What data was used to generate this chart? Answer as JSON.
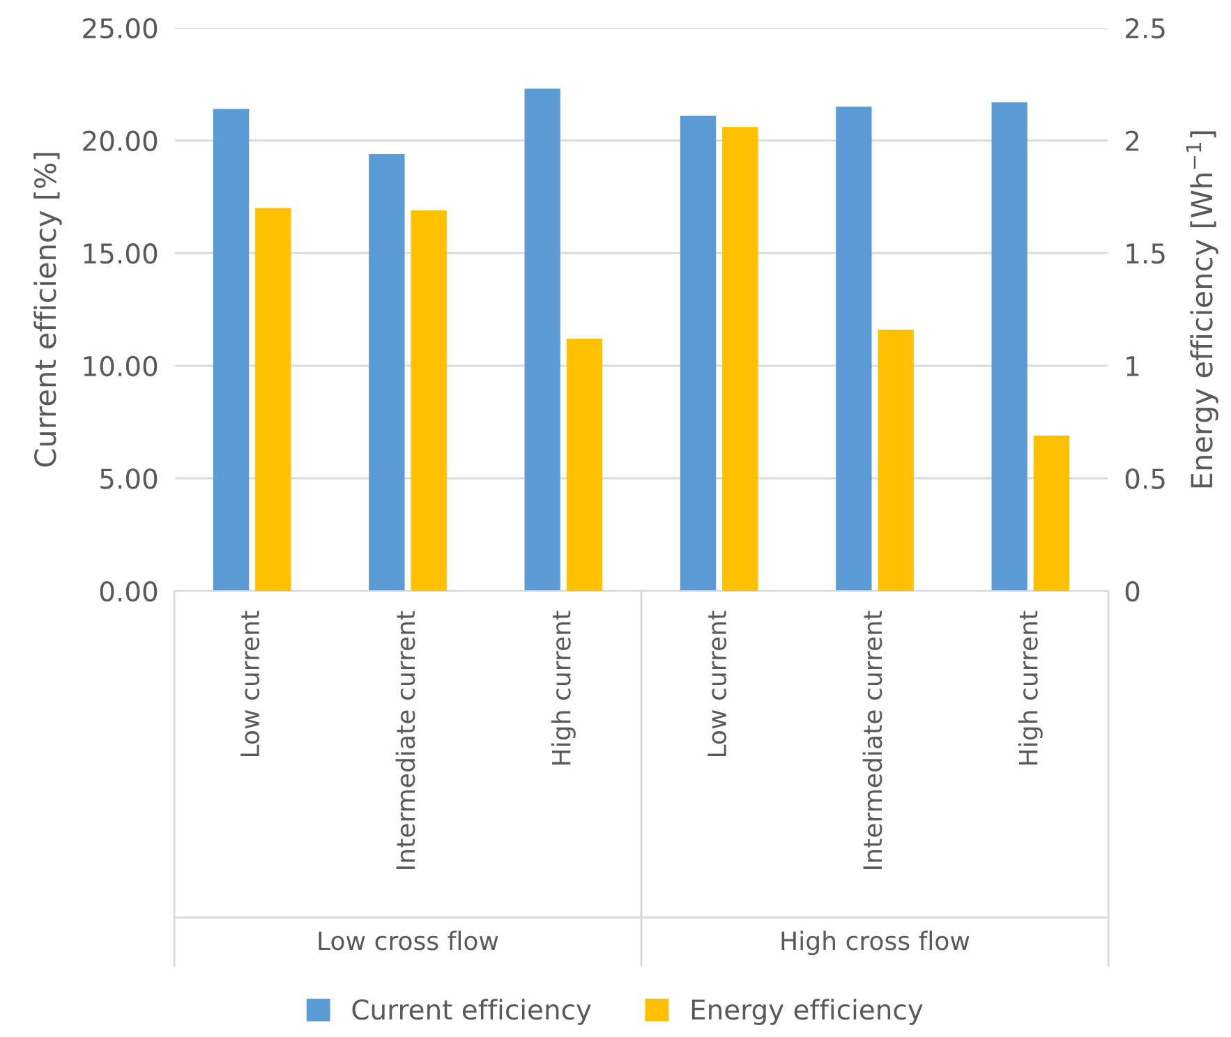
{
  "chart_data": {
    "type": "bar",
    "categories": [
      "Low current",
      "Intermediate current",
      "High current",
      "Low current",
      "Intermediate current",
      "High current"
    ],
    "series": [
      {
        "name": "Current efficiency",
        "color": "#5b9bd5",
        "values": [
          21.4,
          19.4,
          22.3,
          21.1,
          21.5,
          21.7
        ]
      },
      {
        "name": "Energy efficiency",
        "color": "#ffc000",
        "axis": "y2",
        "values": [
          1.7,
          1.69,
          1.12,
          2.06,
          1.16,
          0.69
        ]
      }
    ],
    "ylabel": "Current efficiency [%]",
    "y2label": "Energy efficiency [Wh$^{−1}$]",
    "ylim": [
      0,
      25
    ],
    "yticks": [
      {
        "value": 0,
        "label": "0.00"
      },
      {
        "value": 5,
        "label": "5.00"
      },
      {
        "value": 10,
        "label": "10.00"
      },
      {
        "value": 15,
        "label": "15.00"
      },
      {
        "value": 20,
        "label": "20.00"
      },
      {
        "value": 25,
        "label": "25.00"
      }
    ],
    "y2lim": [
      0,
      2.5
    ],
    "y2ticks": [
      0,
      0.5,
      1,
      1.5,
      2,
      2.5
    ],
    "annotations": [
      "Low cross flow",
      "High cross flow"
    ],
    "grid": "y",
    "legend": "bottom"
  }
}
